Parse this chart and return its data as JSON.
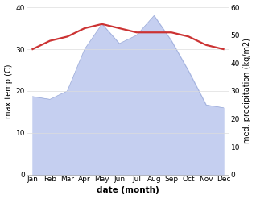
{
  "months": [
    "Jan",
    "Feb",
    "Mar",
    "Apr",
    "May",
    "Jun",
    "Jul",
    "Aug",
    "Sep",
    "Oct",
    "Nov",
    "Dec"
  ],
  "x": [
    0,
    1,
    2,
    3,
    4,
    5,
    6,
    7,
    8,
    9,
    10,
    11
  ],
  "temperature": [
    30,
    32,
    33,
    35,
    36,
    35,
    34,
    34,
    34,
    33,
    31,
    30
  ],
  "precipitation": [
    28,
    27,
    30,
    45,
    54,
    47,
    50,
    57,
    48,
    37,
    25,
    24
  ],
  "temp_color": "#cc3333",
  "precip_fill_color": "#c5cff0",
  "precip_line_color": "#9aaad8",
  "xlabel": "date (month)",
  "ylabel_left": "max temp (C)",
  "ylabel_right": "med. precipitation (kg/m2)",
  "ylim_left": [
    0,
    40
  ],
  "ylim_right": [
    0,
    60
  ],
  "yticks_left": [
    0,
    10,
    20,
    30,
    40
  ],
  "yticks_right": [
    0,
    10,
    20,
    30,
    40,
    50,
    60
  ],
  "grid_color": "#dddddd",
  "xlabel_fontsize": 7.5,
  "ylabel_fontsize": 7,
  "tick_fontsize": 6.5,
  "line_width": 1.6,
  "figsize": [
    3.18,
    2.47
  ],
  "dpi": 100
}
